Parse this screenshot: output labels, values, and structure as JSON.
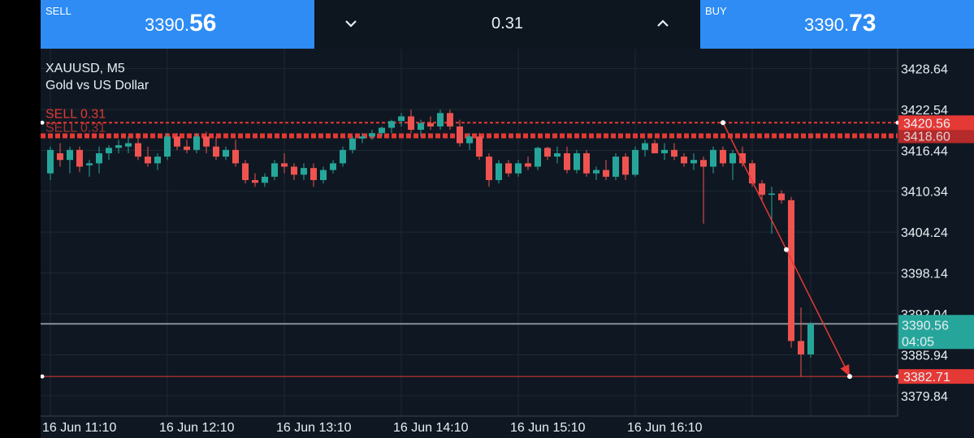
{
  "trade": {
    "sell": {
      "label": "SELL",
      "price_prefix": "3390.",
      "price_big": "56"
    },
    "buy": {
      "label": "BUY",
      "price_prefix": "3390.",
      "price_big": "73"
    },
    "volume": "0.31",
    "decrease_icon": "chevron-down-icon",
    "increase_icon": "chevron-up-icon"
  },
  "chart_info": {
    "symbol": "XAUUSD, M5",
    "description": "Gold vs US Dollar"
  },
  "chart_data": {
    "type": "candlestick",
    "y_ticks": [
      3428.64,
      3422.54,
      3416.44,
      3410.34,
      3404.24,
      3398.14,
      3392.04,
      3385.94,
      3379.84
    ],
    "ylim": [
      3376.8,
      3431.6
    ],
    "x_tick_labels": [
      "16 Jun 11:10",
      "16 Jun 12:10",
      "16 Jun 13:10",
      "16 Jun 14:10",
      "16 Jun 15:10",
      "16 Jun 16:10"
    ],
    "x_tick_index": [
      0,
      12,
      24,
      36,
      48,
      60
    ],
    "candles": [
      [
        3413.0,
        3417.0,
        3412.0,
        3416.5
      ],
      [
        3416.0,
        3417.5,
        3414.0,
        3415.0
      ],
      [
        3415.0,
        3417.0,
        3413.0,
        3416.5
      ],
      [
        3416.5,
        3417.0,
        3413.2,
        3414.0
      ],
      [
        3414.2,
        3415.0,
        3412.5,
        3414.5
      ],
      [
        3414.5,
        3417.0,
        3413.0,
        3416.0
      ],
      [
        3416.0,
        3417.2,
        3415.0,
        3416.8
      ],
      [
        3416.8,
        3418.0,
        3416.0,
        3417.2
      ],
      [
        3417.0,
        3418.5,
        3416.0,
        3417.5
      ],
      [
        3417.5,
        3419.0,
        3415.0,
        3415.5
      ],
      [
        3415.5,
        3417.0,
        3414.0,
        3414.5
      ],
      [
        3414.5,
        3416.0,
        3413.5,
        3415.5
      ],
      [
        3415.5,
        3419.0,
        3415.0,
        3418.5
      ],
      [
        3418.5,
        3419.0,
        3416.5,
        3417.0
      ],
      [
        3417.0,
        3418.0,
        3416.0,
        3416.5
      ],
      [
        3416.5,
        3419.0,
        3416.0,
        3418.5
      ],
      [
        3418.5,
        3419.2,
        3416.0,
        3417.0
      ],
      [
        3417.0,
        3418.5,
        3415.0,
        3415.5
      ],
      [
        3415.5,
        3417.0,
        3415.0,
        3416.5
      ],
      [
        3416.5,
        3418.0,
        3414.0,
        3414.5
      ],
      [
        3414.5,
        3415.0,
        3411.5,
        3412.0
      ],
      [
        3412.0,
        3413.0,
        3411.0,
        3411.6
      ],
      [
        3411.6,
        3413.0,
        3411.0,
        3412.5
      ],
      [
        3412.5,
        3415.0,
        3412.0,
        3414.5
      ],
      [
        3414.5,
        3416.0,
        3413.0,
        3414.0
      ],
      [
        3414.0,
        3414.5,
        3412.0,
        3412.8
      ],
      [
        3412.8,
        3414.5,
        3412.0,
        3413.8
      ],
      [
        3413.8,
        3414.5,
        3411.0,
        3412.0
      ],
      [
        3412.0,
        3414.0,
        3411.5,
        3413.5
      ],
      [
        3413.5,
        3415.0,
        3413.0,
        3414.5
      ],
      [
        3414.5,
        3417.0,
        3414.0,
        3416.5
      ],
      [
        3416.5,
        3418.5,
        3416.0,
        3418.2
      ],
      [
        3418.2,
        3419.0,
        3417.5,
        3418.5
      ],
      [
        3418.5,
        3419.5,
        3418.0,
        3419.0
      ],
      [
        3419.0,
        3420.0,
        3418.5,
        3419.8
      ],
      [
        3419.8,
        3421.0,
        3419.0,
        3420.8
      ],
      [
        3420.8,
        3422.0,
        3420.0,
        3421.5
      ],
      [
        3421.5,
        3422.5,
        3419.0,
        3419.5
      ],
      [
        3419.5,
        3421.0,
        3418.5,
        3420.5
      ],
      [
        3420.5,
        3421.5,
        3419.5,
        3420.0
      ],
      [
        3420.0,
        3422.5,
        3419.5,
        3422.0
      ],
      [
        3422.0,
        3422.5,
        3419.5,
        3420.0
      ],
      [
        3420.0,
        3421.0,
        3417.0,
        3417.5
      ],
      [
        3417.5,
        3419.0,
        3416.5,
        3418.5
      ],
      [
        3418.5,
        3419.0,
        3415.0,
        3415.5
      ],
      [
        3415.5,
        3416.0,
        3411.0,
        3412.0
      ],
      [
        3412.0,
        3415.0,
        3411.5,
        3414.5
      ],
      [
        3414.5,
        3415.0,
        3412.5,
        3413.0
      ],
      [
        3413.0,
        3415.0,
        3412.5,
        3414.5
      ],
      [
        3414.5,
        3415.5,
        3413.5,
        3414.0
      ],
      [
        3414.0,
        3417.0,
        3413.5,
        3416.8
      ],
      [
        3416.8,
        3417.0,
        3415.0,
        3415.5
      ],
      [
        3415.5,
        3417.0,
        3414.5,
        3416.0
      ],
      [
        3416.0,
        3417.0,
        3413.0,
        3413.5
      ],
      [
        3413.5,
        3416.5,
        3413.0,
        3416.0
      ],
      [
        3416.0,
        3416.5,
        3412.5,
        3413.0
      ],
      [
        3413.0,
        3414.0,
        3412.0,
        3413.5
      ],
      [
        3413.5,
        3415.0,
        3412.0,
        3412.5
      ],
      [
        3412.5,
        3416.0,
        3412.0,
        3415.5
      ],
      [
        3415.5,
        3416.0,
        3412.0,
        3412.8
      ],
      [
        3412.8,
        3417.0,
        3412.5,
        3416.5
      ],
      [
        3416.5,
        3418.0,
        3415.5,
        3417.5
      ],
      [
        3417.5,
        3418.0,
        3416.5,
        3416.0
      ],
      [
        3416.0,
        3417.5,
        3415.0,
        3416.5
      ],
      [
        3416.5,
        3417.5,
        3415.0,
        3415.5
      ],
      [
        3415.5,
        3416.0,
        3414.0,
        3414.5
      ],
      [
        3414.5,
        3416.0,
        3413.5,
        3415.0
      ],
      [
        3415.0,
        3415.5,
        3405.5,
        3414.0
      ],
      [
        3414.0,
        3417.0,
        3413.0,
        3416.5
      ],
      [
        3416.5,
        3417.0,
        3414.0,
        3414.5
      ],
      [
        3414.5,
        3416.5,
        3412.0,
        3416.0
      ],
      [
        3416.0,
        3417.0,
        3414.0,
        3414.5
      ],
      [
        3414.5,
        3415.0,
        3411.0,
        3411.5
      ],
      [
        3411.5,
        3412.0,
        3409.0,
        3409.8
      ],
      [
        3409.8,
        3411.0,
        3404.0,
        3410.0
      ],
      [
        3410.0,
        3410.5,
        3408.5,
        3409.0
      ],
      [
        3409.0,
        3409.5,
        3387.0,
        3388.0
      ],
      [
        3388.0,
        3393.0,
        3382.7,
        3386.0
      ],
      [
        3386.0,
        3390.8,
        3385.5,
        3390.56
      ]
    ],
    "current_line": 3390.56,
    "sell_line": 3420.56,
    "dotted_line": 3418.6,
    "target_line": 3382.71,
    "arrow_points": [
      [
        69,
        3420.56
      ],
      [
        82,
        3382.71
      ]
    ],
    "labels": {
      "current_price": "3390.56",
      "countdown": "04:05",
      "sell_price": "3420.56",
      "dotted_price": "3418.60",
      "target_price": "3382.71",
      "sell_order": "SELL 0.31",
      "sell_order_2": "SELL 0.31"
    },
    "colors": {
      "bull": "#26a69a",
      "bear": "#ef5350",
      "grid": "#1e2833",
      "text": "#e8eef4",
      "sell_line": "#e53935",
      "current_line": "#8a8f96",
      "price_tag_current": "#26a69a",
      "price_tag_sell": "#e53935"
    }
  }
}
